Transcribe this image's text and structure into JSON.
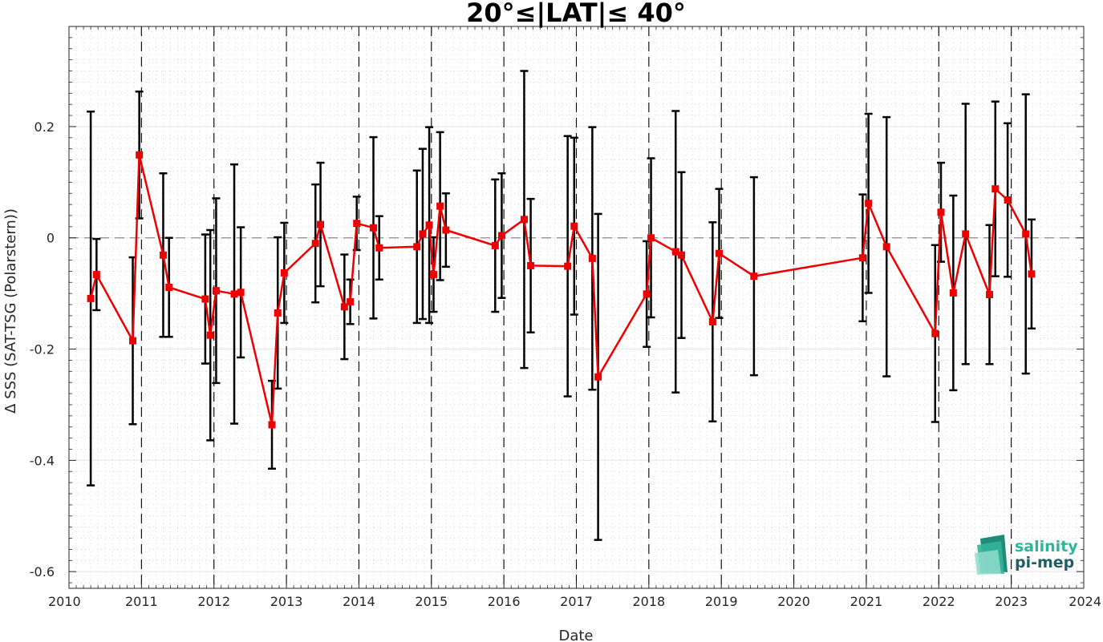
{
  "chart_data": {
    "type": "line",
    "title": "20°≤|LAT|≤ 40°",
    "xlabel": "Date",
    "ylabel": "Δ SSS (SAT-TSG (Polarstern))",
    "xlim": [
      2010,
      2024
    ],
    "ylim": [
      -0.63,
      0.38
    ],
    "xticks": [
      2010,
      2011,
      2012,
      2013,
      2014,
      2015,
      2016,
      2017,
      2018,
      2019,
      2020,
      2021,
      2022,
      2023,
      2024
    ],
    "xtick_labels": [
      "2010",
      "2011",
      "2012",
      "2013",
      "2014",
      "2015",
      "2016",
      "2017",
      "2018",
      "2019",
      "2020",
      "2021",
      "2022",
      "2023",
      "2024"
    ],
    "yticks": [
      -0.6,
      -0.4,
      -0.2,
      0,
      0.2
    ],
    "ytick_labels": [
      "-0.6",
      "-0.4",
      "-0.2",
      "0",
      "0.2"
    ],
    "grid": true,
    "zero_line": 0,
    "year_dividers": [
      2011,
      2012,
      2013,
      2014,
      2015,
      2016,
      2017,
      2018,
      2019,
      2020,
      2021,
      2022,
      2023
    ],
    "series": [
      {
        "color": "#ee0000",
        "errorbar_color": "#000000",
        "points": [
          {
            "x": 2010.3,
            "y": -0.109,
            "err": 0.336
          },
          {
            "x": 2010.38,
            "y": -0.066,
            "err": 0.064
          },
          {
            "x": 2010.88,
            "y": -0.185,
            "err": 0.15
          },
          {
            "x": 2010.97,
            "y": 0.149,
            "err": 0.114
          },
          {
            "x": 2011.3,
            "y": -0.031,
            "err": 0.147
          },
          {
            "x": 2011.38,
            "y": -0.089,
            "err": 0.089
          },
          {
            "x": 2011.88,
            "y": -0.11,
            "err": 0.116
          },
          {
            "x": 2011.95,
            "y": -0.175,
            "err": 0.189
          },
          {
            "x": 2012.03,
            "y": -0.095,
            "err": 0.166
          },
          {
            "x": 2012.28,
            "y": -0.101,
            "err": 0.233
          },
          {
            "x": 2012.37,
            "y": -0.098,
            "err": 0.117
          },
          {
            "x": 2012.8,
            "y": -0.336,
            "err": 0.079
          },
          {
            "x": 2012.88,
            "y": -0.135,
            "err": 0.136
          },
          {
            "x": 2012.97,
            "y": -0.063,
            "err": 0.09
          },
          {
            "x": 2013.4,
            "y": -0.01,
            "err": 0.106
          },
          {
            "x": 2013.47,
            "y": 0.024,
            "err": 0.111
          },
          {
            "x": 2013.8,
            "y": -0.124,
            "err": 0.094
          },
          {
            "x": 2013.88,
            "y": -0.115,
            "err": 0.04
          },
          {
            "x": 2013.97,
            "y": 0.026,
            "err": 0.048
          },
          {
            "x": 2014.2,
            "y": 0.018,
            "err": 0.163
          },
          {
            "x": 2014.28,
            "y": -0.018,
            "err": 0.057
          },
          {
            "x": 2014.8,
            "y": -0.016,
            "err": 0.137
          },
          {
            "x": 2014.88,
            "y": 0.007,
            "err": 0.153
          },
          {
            "x": 2014.97,
            "y": 0.023,
            "err": 0.176
          },
          {
            "x": 2015.03,
            "y": -0.066,
            "err": 0.067
          },
          {
            "x": 2015.12,
            "y": 0.057,
            "err": 0.133
          },
          {
            "x": 2015.2,
            "y": 0.014,
            "err": 0.066
          },
          {
            "x": 2015.88,
            "y": -0.014,
            "err": 0.119
          },
          {
            "x": 2015.97,
            "y": 0.004,
            "err": 0.112
          },
          {
            "x": 2016.28,
            "y": 0.033,
            "err": 0.267
          },
          {
            "x": 2016.37,
            "y": -0.05,
            "err": 0.12
          },
          {
            "x": 2016.88,
            "y": -0.051,
            "err": 0.234
          },
          {
            "x": 2016.97,
            "y": 0.021,
            "err": 0.159
          },
          {
            "x": 2017.22,
            "y": -0.037,
            "err": 0.236
          },
          {
            "x": 2017.3,
            "y": -0.25,
            "err": 0.293
          },
          {
            "x": 2017.97,
            "y": -0.101,
            "err": 0.095
          },
          {
            "x": 2018.03,
            "y": 0.0,
            "err": 0.143
          },
          {
            "x": 2018.37,
            "y": -0.025,
            "err": 0.253
          },
          {
            "x": 2018.45,
            "y": -0.031,
            "err": 0.149
          },
          {
            "x": 2018.88,
            "y": -0.151,
            "err": 0.179
          },
          {
            "x": 2018.97,
            "y": -0.028,
            "err": 0.116
          },
          {
            "x": 2019.45,
            "y": -0.069,
            "err": 0.178
          },
          {
            "x": 2020.95,
            "y": -0.036,
            "err": 0.114
          },
          {
            "x": 2021.03,
            "y": 0.062,
            "err": 0.161
          },
          {
            "x": 2021.28,
            "y": -0.016,
            "err": 0.233
          },
          {
            "x": 2021.95,
            "y": -0.172,
            "err": 0.159
          },
          {
            "x": 2022.03,
            "y": 0.046,
            "err": 0.089
          },
          {
            "x": 2022.2,
            "y": -0.099,
            "err": 0.175
          },
          {
            "x": 2022.37,
            "y": 0.007,
            "err": 0.234
          },
          {
            "x": 2022.7,
            "y": -0.102,
            "err": 0.125
          },
          {
            "x": 2022.78,
            "y": 0.088,
            "err": 0.157
          },
          {
            "x": 2022.95,
            "y": 0.068,
            "err": 0.138
          },
          {
            "x": 2023.2,
            "y": 0.007,
            "err": 0.251
          },
          {
            "x": 2023.28,
            "y": -0.065,
            "err": 0.098
          }
        ]
      }
    ]
  },
  "logo": {
    "line1": "salinity",
    "line2": "pi-mep",
    "colors": [
      "#2fb59a",
      "#1e5f66"
    ]
  }
}
